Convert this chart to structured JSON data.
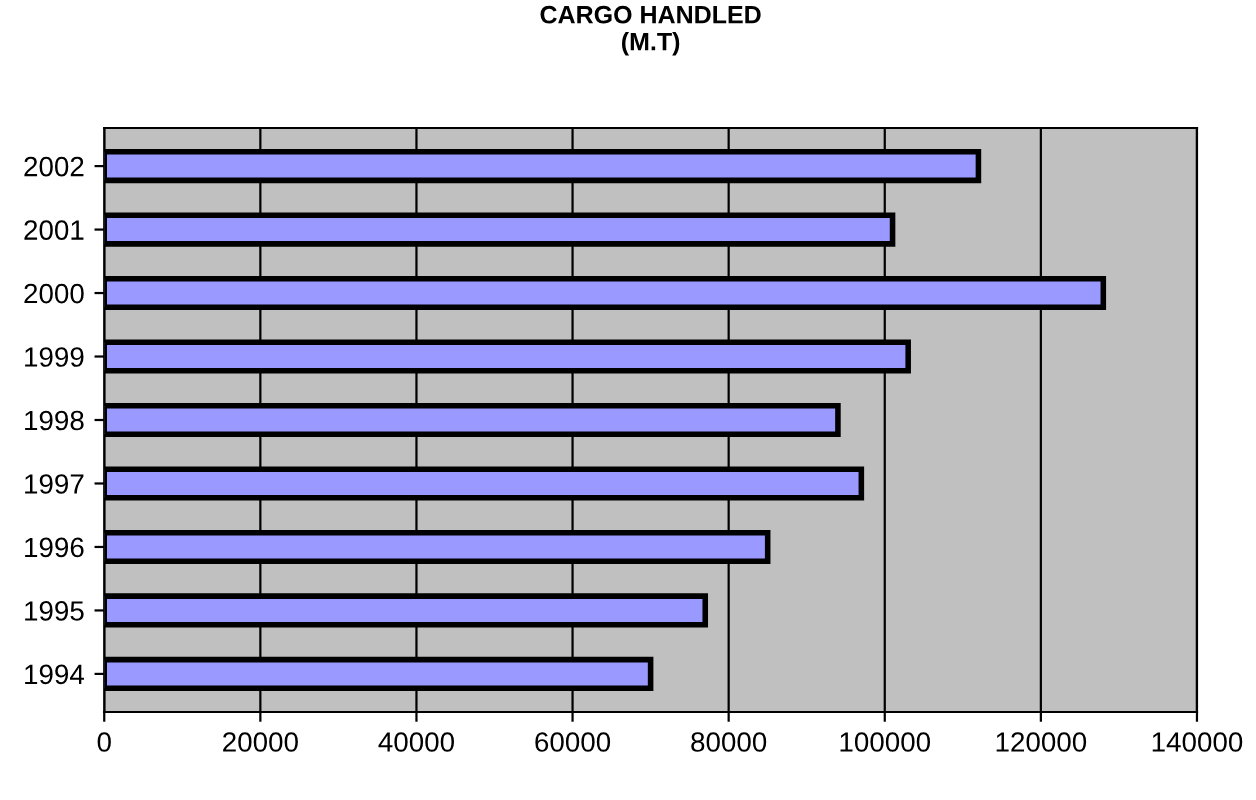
{
  "chart_data": {
    "type": "bar",
    "orientation": "horizontal",
    "title": "CARGO HANDLED\n(M.T)",
    "categories": [
      "2002",
      "2001",
      "2000",
      "1999",
      "1998",
      "1997",
      "1996",
      "1995",
      "1994"
    ],
    "values": [
      112000,
      101000,
      128000,
      103000,
      94000,
      97000,
      85000,
      77000,
      70000
    ],
    "color": "#9999ff",
    "xlim": [
      0,
      140000
    ],
    "xticks": [
      0,
      20000,
      40000,
      60000,
      80000,
      100000,
      120000,
      140000
    ],
    "grid": "x",
    "legend": false
  }
}
